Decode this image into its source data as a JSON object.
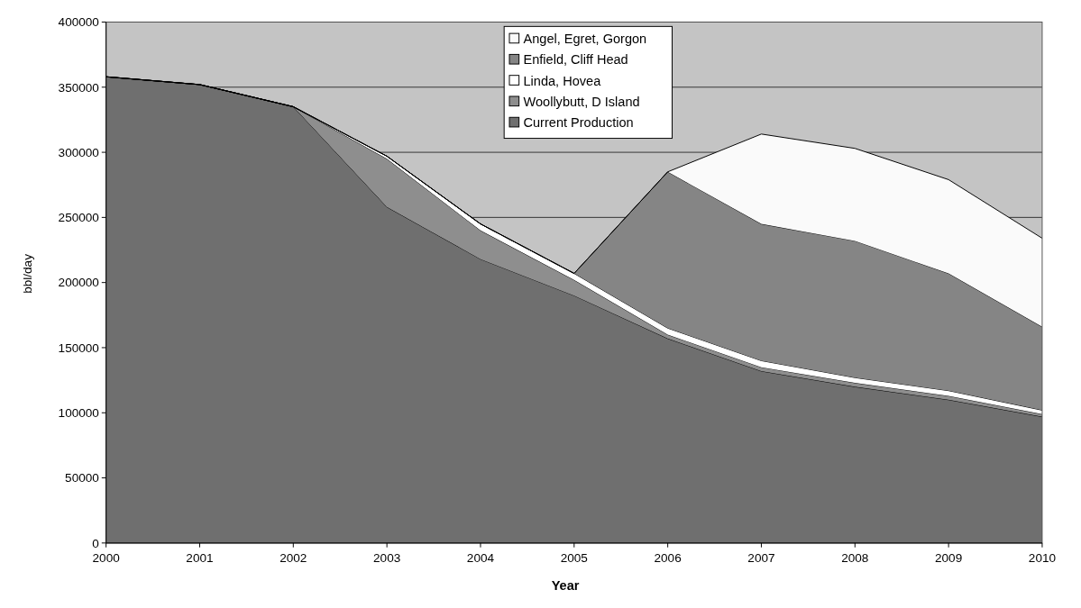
{
  "chart_data": {
    "type": "area",
    "stacked": true,
    "xlabel": "Year",
    "ylabel": "bbl/day",
    "x": [
      2000,
      2001,
      2002,
      2003,
      2004,
      2005,
      2006,
      2007,
      2008,
      2009,
      2010
    ],
    "xlim": [
      2000,
      2010
    ],
    "xticks": [
      2000,
      2001,
      2002,
      2003,
      2004,
      2005,
      2006,
      2007,
      2008,
      2009,
      2010
    ],
    "ylim": [
      0,
      400000
    ],
    "yticks": [
      0,
      50000,
      100000,
      150000,
      200000,
      250000,
      300000,
      350000,
      400000
    ],
    "grid": "y",
    "legend": "top",
    "series": [
      {
        "name": "Current Production",
        "color": "#6f6f6f",
        "values": [
          358000,
          352000,
          335000,
          258000,
          218000,
          190000,
          157000,
          132000,
          120000,
          110000,
          97000
        ]
      },
      {
        "name": "Woollybutt, D Island",
        "color": "#8e8e8e",
        "values": [
          0,
          0,
          0,
          37000,
          22000,
          12000,
          3000,
          3000,
          3000,
          3000,
          2000
        ]
      },
      {
        "name": "Linda, Hovea",
        "color": "#ffffff",
        "values": [
          0,
          0,
          0,
          2000,
          5000,
          5000,
          5000,
          5000,
          4000,
          4000,
          3000
        ]
      },
      {
        "name": "Enfield, Cliff Head",
        "color": "#858585",
        "values": [
          0,
          0,
          0,
          0,
          0,
          0,
          120000,
          105000,
          105000,
          90000,
          64000
        ]
      },
      {
        "name": "Angel, Egret, Gorgon",
        "color": "#fafafa",
        "values": [
          0,
          0,
          0,
          0,
          0,
          0,
          0,
          69000,
          71000,
          72000,
          68000
        ]
      }
    ]
  }
}
